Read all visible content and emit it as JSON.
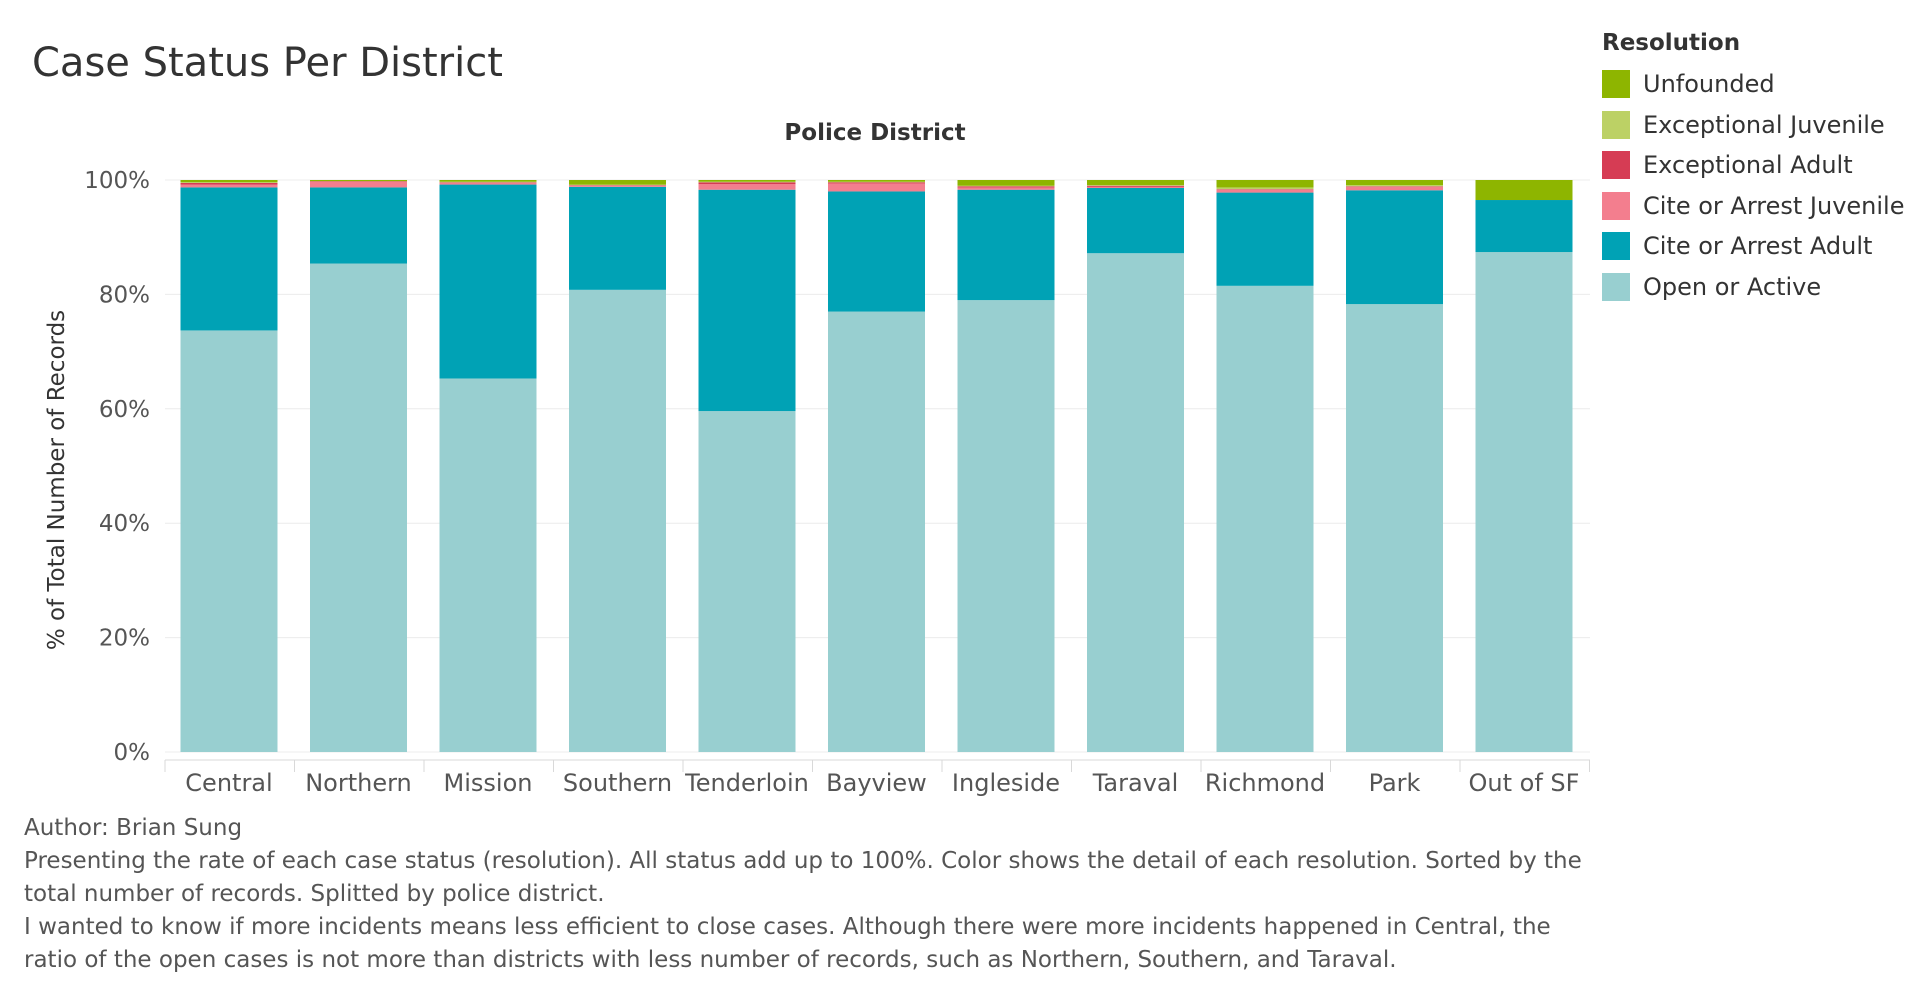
{
  "chart_data": {
    "type": "bar",
    "stacked": true,
    "title": "Case Status Per District",
    "xlabel": "Police District",
    "ylabel": "% of Total Number of Records",
    "ylim": [
      0,
      100
    ],
    "yticks": [
      "0%",
      "20%",
      "40%",
      "60%",
      "80%",
      "100%"
    ],
    "grid": true,
    "legend_position": "right",
    "legend_title": "Resolution",
    "categories": [
      "Central",
      "Northern",
      "Mission",
      "Southern",
      "Tenderloin",
      "Bayview",
      "Ingleside",
      "Taraval",
      "Richmond",
      "Park",
      "Out of SF"
    ],
    "series": [
      {
        "name": "Open or Active",
        "color": "#98cfd0",
        "values": [
          73.7,
          85.4,
          65.3,
          80.8,
          59.6,
          77.0,
          79.0,
          87.2,
          81.5,
          78.3,
          87.4
        ]
      },
      {
        "name": "Cite or Arrest Adult",
        "color": "#00a2b5",
        "values": [
          25.0,
          13.3,
          33.9,
          18.0,
          38.7,
          21.0,
          19.3,
          11.4,
          16.3,
          19.9,
          9.1
        ]
      },
      {
        "name": "Cite or Arrest Juvenile",
        "color": "#f37e8e",
        "values": [
          0.5,
          1.0,
          0.3,
          0.2,
          1.0,
          1.4,
          0.4,
          0.2,
          0.5,
          0.6,
          0.0
        ]
      },
      {
        "name": "Exceptional Adult",
        "color": "#d63c54",
        "values": [
          0.3,
          0.1,
          0.1,
          0.1,
          0.3,
          0.2,
          0.2,
          0.2,
          0.1,
          0.1,
          0.0
        ]
      },
      {
        "name": "Exceptional Juvenile",
        "color": "#bcd165",
        "values": [
          0.1,
          0.0,
          0.1,
          0.1,
          0.1,
          0.1,
          0.1,
          0.1,
          0.3,
          0.2,
          0.0
        ]
      },
      {
        "name": "Unfounded",
        "color": "#8eb500",
        "values": [
          0.4,
          0.2,
          0.3,
          0.8,
          0.3,
          0.3,
          1.0,
          0.9,
          1.3,
          0.9,
          3.5
        ]
      }
    ]
  },
  "legend_order": [
    "Unfounded",
    "Exceptional Juvenile",
    "Exceptional Adult",
    "Cite or Arrest Juvenile",
    "Cite or Arrest Adult",
    "Open or Active"
  ],
  "caption": {
    "author": "Author: Brian Sung",
    "description": "Presenting the rate of each case status (resolution). All status add up to 100%. Color shows the detail of each resolution. Sorted by the total number of records. Splitted by police district.",
    "insight": "I wanted to know if more incidents means less efficient to close cases. Although there were more incidents happened in Central, the ratio of the open cases is not more than districts with less number of records, such as Northern, Southern, and Taraval."
  }
}
